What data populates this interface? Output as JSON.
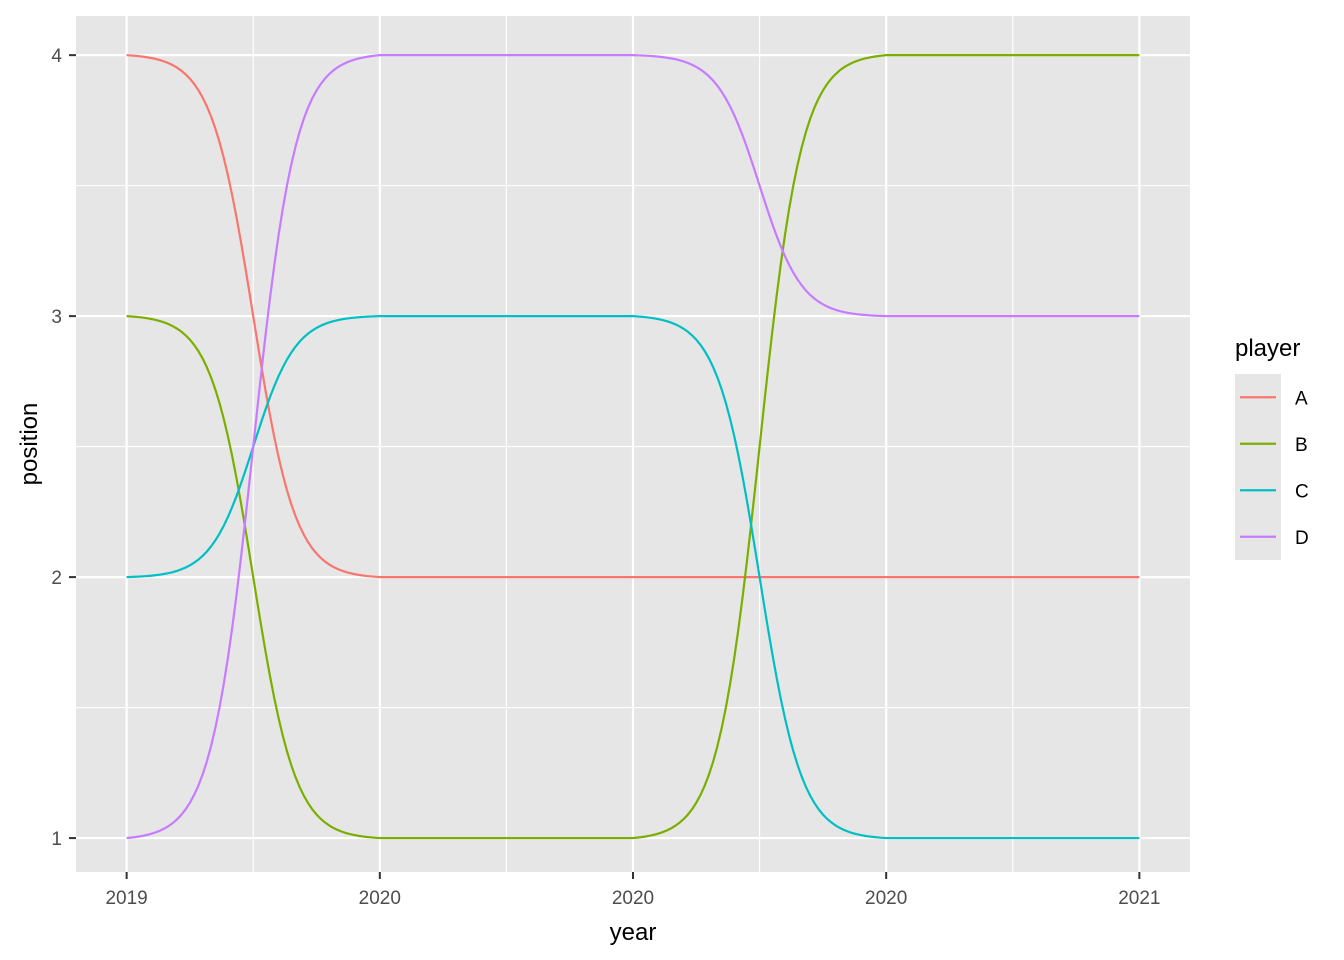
{
  "chart_data": {
    "type": "line",
    "xlabel": "year",
    "ylabel": "position",
    "xlim": [
      2018.9,
      2021.1
    ],
    "ylim": [
      0.87,
      4.15
    ],
    "x_ticks": [
      2019,
      2019.5,
      2020,
      2020.5,
      2021
    ],
    "x_tick_labels": [
      "2019",
      "2020",
      "2020",
      "2020",
      "2021"
    ],
    "y_ticks": [
      1,
      2,
      3,
      4
    ],
    "y_tick_labels": [
      "1",
      "2",
      "3",
      "4"
    ],
    "grid": true,
    "panel_background": "#E6E6E6",
    "legend": {
      "title": "player",
      "placement": "right"
    },
    "interpolation": "sigmoid",
    "x": [
      2019,
      2019.5,
      2020,
      2020.5,
      2021
    ],
    "series": [
      {
        "name": "A",
        "color": "#F8766D",
        "values": [
          4,
          2,
          2,
          2,
          2
        ]
      },
      {
        "name": "B",
        "color": "#7CAE00",
        "values": [
          3,
          1,
          1,
          4,
          4
        ]
      },
      {
        "name": "C",
        "color": "#00BFC4",
        "values": [
          2,
          3,
          3,
          1,
          1
        ]
      },
      {
        "name": "D",
        "color": "#C77CFF",
        "values": [
          1,
          4,
          4,
          3,
          3
        ]
      }
    ]
  }
}
